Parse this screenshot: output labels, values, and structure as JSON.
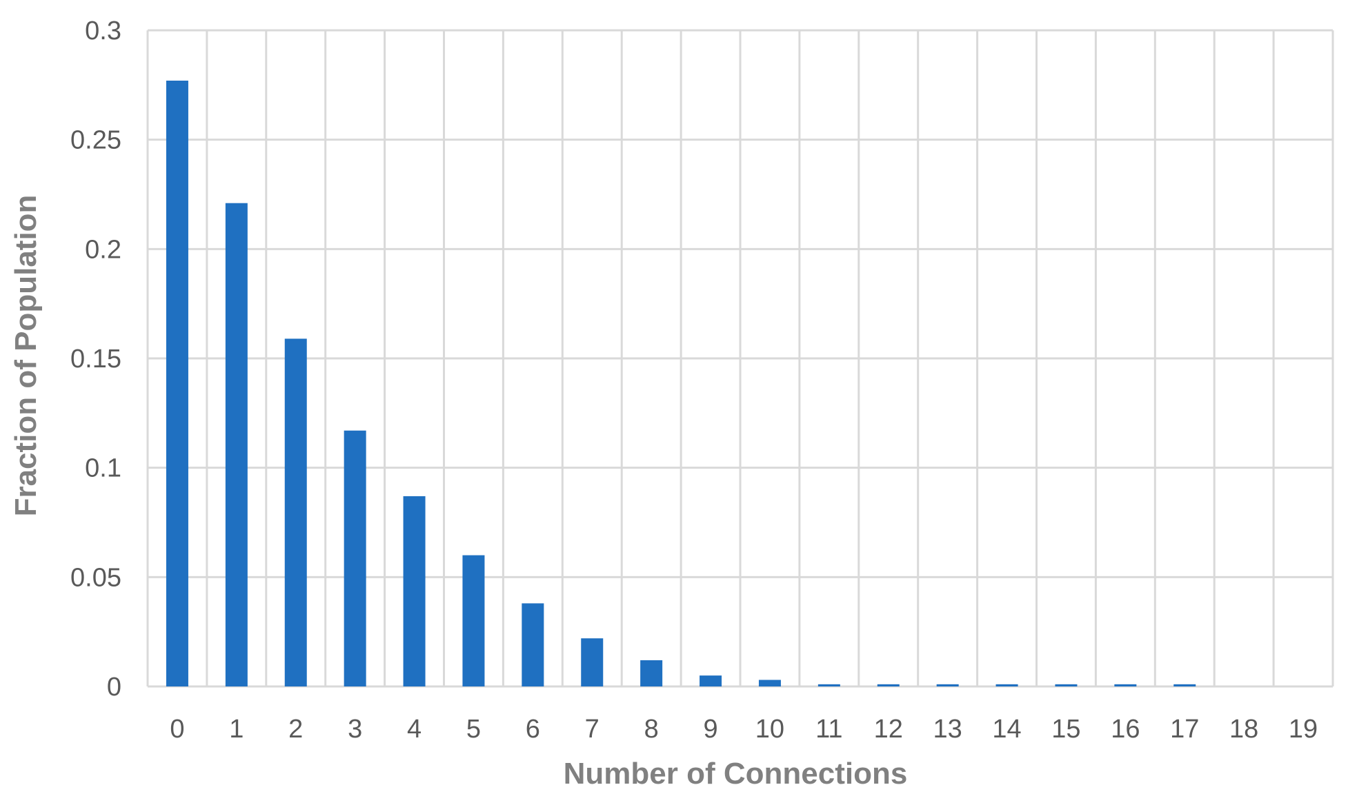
{
  "chart_data": {
    "type": "bar",
    "title": "",
    "xlabel": "Number of Connections",
    "ylabel": "Fraction of Population",
    "categories": [
      "0",
      "1",
      "2",
      "3",
      "4",
      "5",
      "6",
      "7",
      "8",
      "9",
      "10",
      "11",
      "12",
      "13",
      "14",
      "15",
      "16",
      "17",
      "18",
      "19"
    ],
    "values": [
      0.277,
      0.221,
      0.159,
      0.117,
      0.087,
      0.06,
      0.038,
      0.022,
      0.012,
      0.005,
      0.003,
      0.001,
      0.001,
      0.001,
      0.001,
      0.001,
      0.001,
      0.001,
      0,
      0
    ],
    "ylim": [
      0,
      0.3
    ],
    "yticks": [
      0,
      0.05,
      0.1,
      0.15,
      0.2,
      0.25,
      0.3
    ],
    "ytick_labels": [
      "0",
      "0.05",
      "0.1",
      "0.15",
      "0.2",
      "0.25",
      "0.3"
    ],
    "grid": true,
    "legend": "none",
    "colors": {
      "bar": "#1F70C1",
      "grid": "#D9D9D9",
      "tick_text": "#595959",
      "axis_title": "#808080"
    }
  }
}
